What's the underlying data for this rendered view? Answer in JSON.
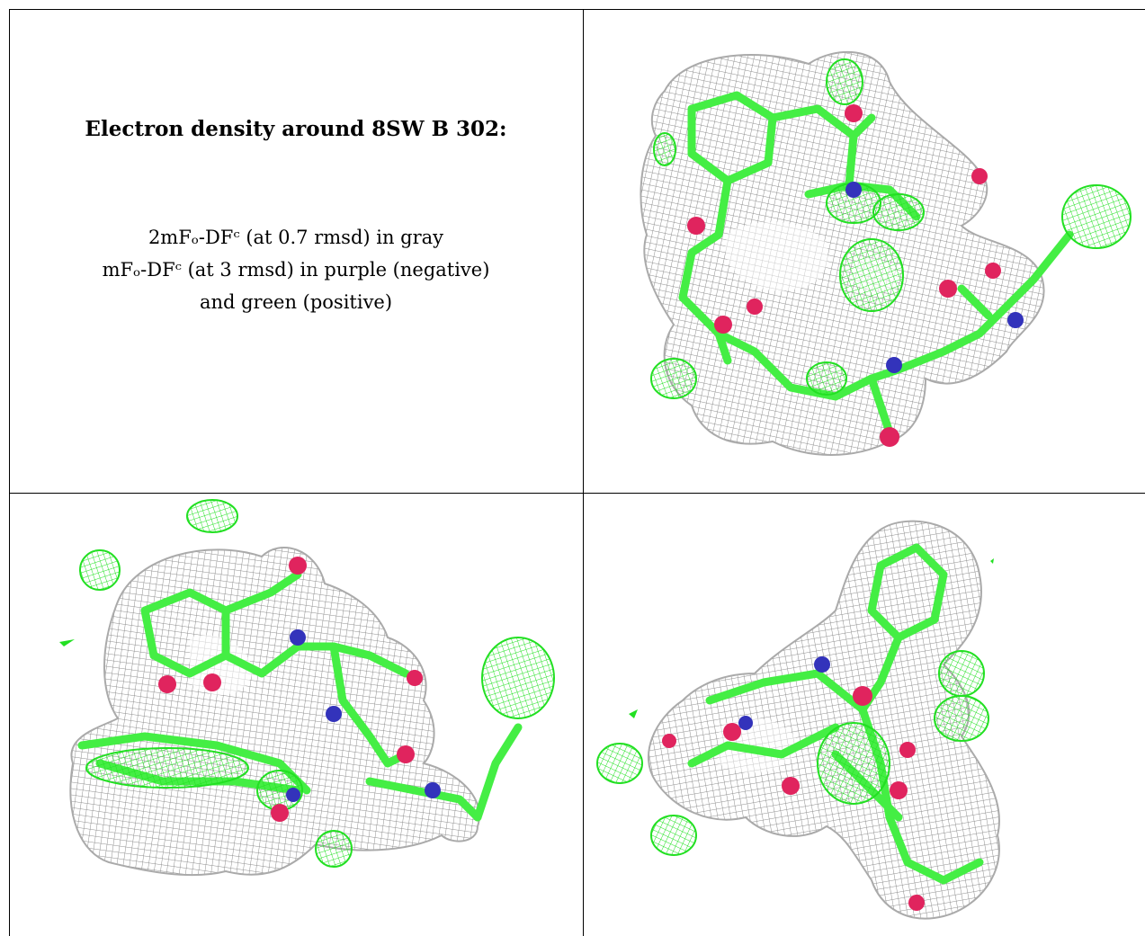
{
  "caption": {
    "title": "Electron density around 8SW B 302:",
    "line1": "2mFₒ-DFᶜ (at 0.7 rmsd) in gray",
    "line2": "mFₒ-DFᶜ (at 3 rmsd) in purple (negative)",
    "line3": "and green (positive)"
  },
  "colors": {
    "density_2fofc": "#9a9a9a",
    "density_positive": "#33ee33",
    "density_negative": "#9933cc",
    "carbon": "#44ee44",
    "oxygen": "#e0245e",
    "nitrogen": "#3333bb"
  },
  "panels": [
    {
      "name": "view-top-right"
    },
    {
      "name": "view-bottom-left"
    },
    {
      "name": "view-bottom-right"
    }
  ]
}
